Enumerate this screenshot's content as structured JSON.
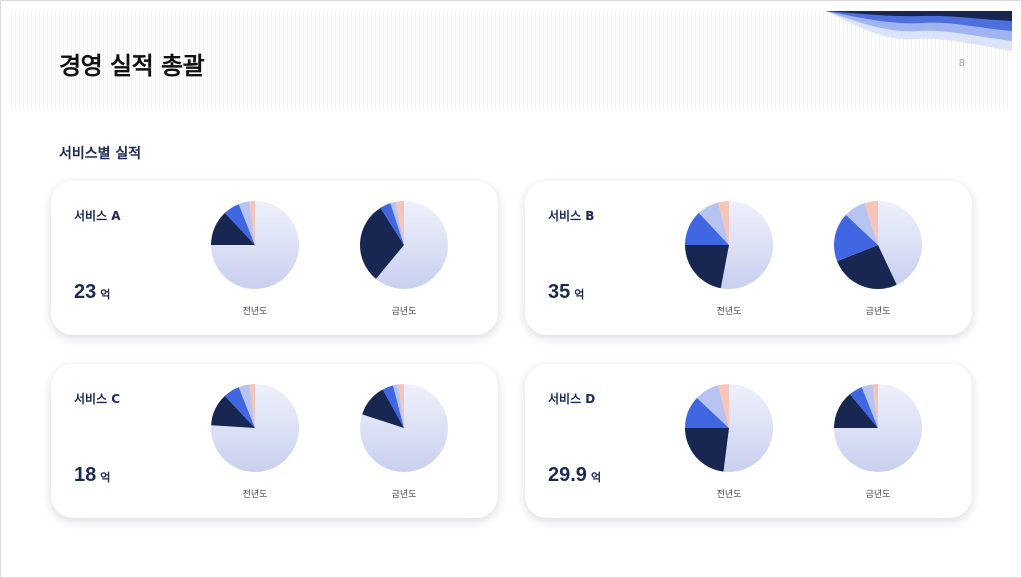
{
  "page": {
    "title": "경영 실적 총괄",
    "page_number": "8"
  },
  "section_title": "서비스별 실적",
  "colors": {
    "navy": "#182652",
    "blue": "#4166e2",
    "light_blue": "#b7c3f0",
    "peach": "#f7c4b9",
    "base_light": "#eef1fb",
    "base_dark": "#c9d0ef",
    "card_text": "#1b2a55"
  },
  "services": [
    {
      "title": "서비스 A",
      "value": "23",
      "unit": "억",
      "chart_data": [
        {
          "type": "pie",
          "label": "전년도",
          "values": [
            75,
            13,
            6,
            4,
            2
          ]
        },
        {
          "type": "pie",
          "label": "금년도",
          "values": [
            61,
            30,
            4,
            2,
            3
          ]
        }
      ]
    },
    {
      "title": "서비스 B",
      "value": "35",
      "unit": "억",
      "chart_data": [
        {
          "type": "pie",
          "label": "전년도",
          "values": [
            53,
            22,
            13,
            8,
            4
          ]
        },
        {
          "type": "pie",
          "label": "금년도",
          "values": [
            43,
            26,
            18,
            8,
            5
          ]
        }
      ]
    },
    {
      "title": "서비스 C",
      "value": "18",
      "unit": "억",
      "chart_data": [
        {
          "type": "pie",
          "label": "전년도",
          "values": [
            76,
            12,
            6,
            4,
            2
          ]
        },
        {
          "type": "pie",
          "label": "금년도",
          "values": [
            80,
            12,
            4,
            2,
            2
          ]
        }
      ]
    },
    {
      "title": "서비스 D",
      "value": "29.9",
      "unit": "억",
      "chart_data": [
        {
          "type": "pie",
          "label": "전년도",
          "values": [
            52,
            23,
            12,
            9,
            4
          ]
        },
        {
          "type": "pie",
          "label": "금년도",
          "values": [
            75,
            14,
            5,
            4,
            2
          ]
        }
      ]
    }
  ]
}
